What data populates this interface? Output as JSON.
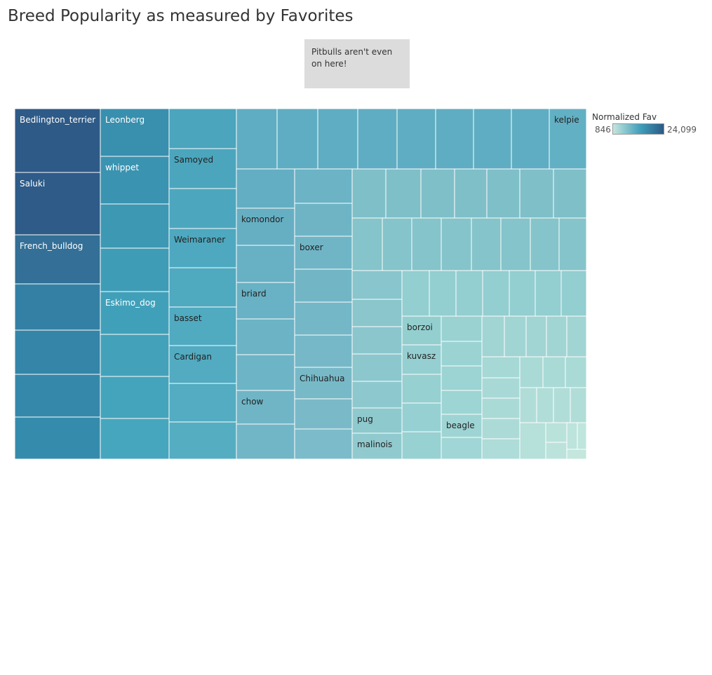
{
  "title": "Breed Popularity as measured by Favorites",
  "annotation": "Pitbulls aren't even on here!",
  "legend": {
    "title": "Normalized Fav",
    "min_label": "846",
    "max_label": "24,099",
    "min_color": "#c4e6dd",
    "mid_color": "#3f9dba",
    "max_color": "#2b5a86"
  },
  "chart_data": {
    "type": "treemap",
    "measure": "Normalized Fav",
    "color_range": [
      846,
      24099
    ],
    "labeled_breeds": [
      "Bedlington_terrier",
      "Saluki",
      "French_bulldog",
      "Leonberg",
      "whippet",
      "Eskimo_dog",
      "Samoyed",
      "Weimaraner",
      "basset",
      "Cardigan",
      "komondor",
      "briard",
      "chow",
      "boxer",
      "Chihuahua",
      "pug",
      "malinois",
      "borzoi",
      "kuvasz",
      "beagle",
      "kelpie"
    ]
  }
}
